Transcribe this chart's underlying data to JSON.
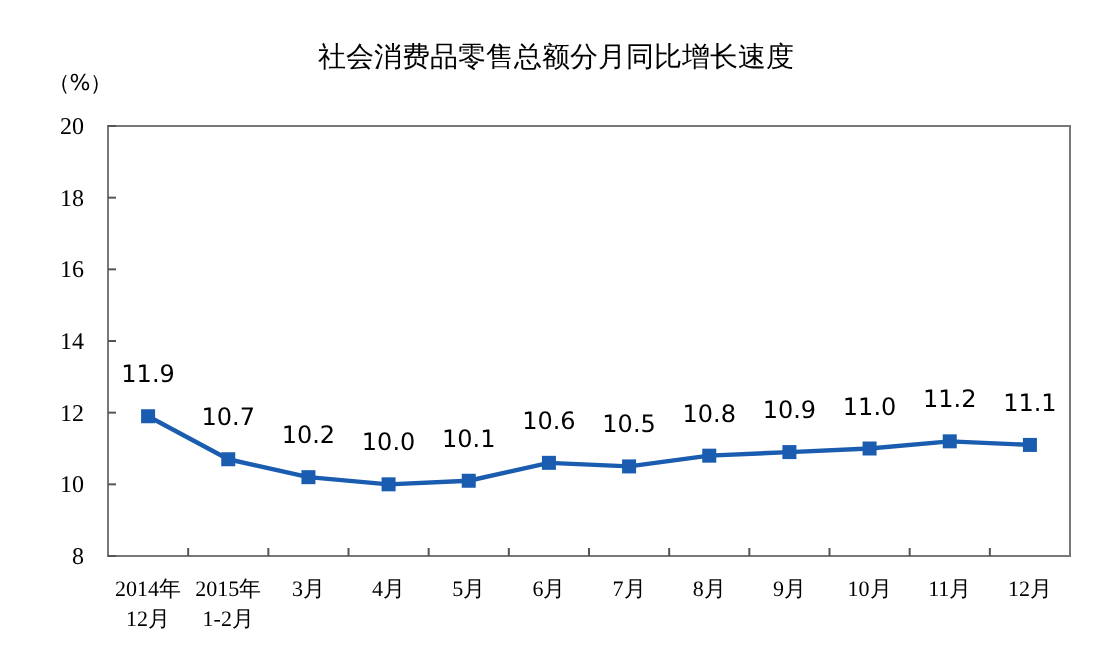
{
  "chart_data": {
    "type": "line",
    "title": "社会消费品零售总额分月同比增长速度",
    "ylabel": "（%）",
    "categories": [
      "2014年\n12月",
      "2015年\n1-2月",
      "3月",
      "4月",
      "5月",
      "6月",
      "7月",
      "8月",
      "9月",
      "10月",
      "11月",
      "12月"
    ],
    "series": [
      {
        "color": "#1a5cb0",
        "values": [
          11.9,
          10.7,
          10.2,
          10.0,
          10.1,
          10.6,
          10.5,
          10.8,
          10.9,
          11.0,
          11.2,
          11.1
        ],
        "value_labels": [
          "11.9",
          "10.7",
          "10.2",
          "10.0",
          "10.1",
          "10.6",
          "10.5",
          "10.8",
          "10.9",
          "11.0",
          "11.2",
          "11.1"
        ]
      }
    ],
    "ylim": [
      8,
      20
    ],
    "yticks": [
      8,
      10,
      12,
      14,
      16,
      18,
      20
    ],
    "marker": "square",
    "line_style": "solid",
    "grid": false
  }
}
